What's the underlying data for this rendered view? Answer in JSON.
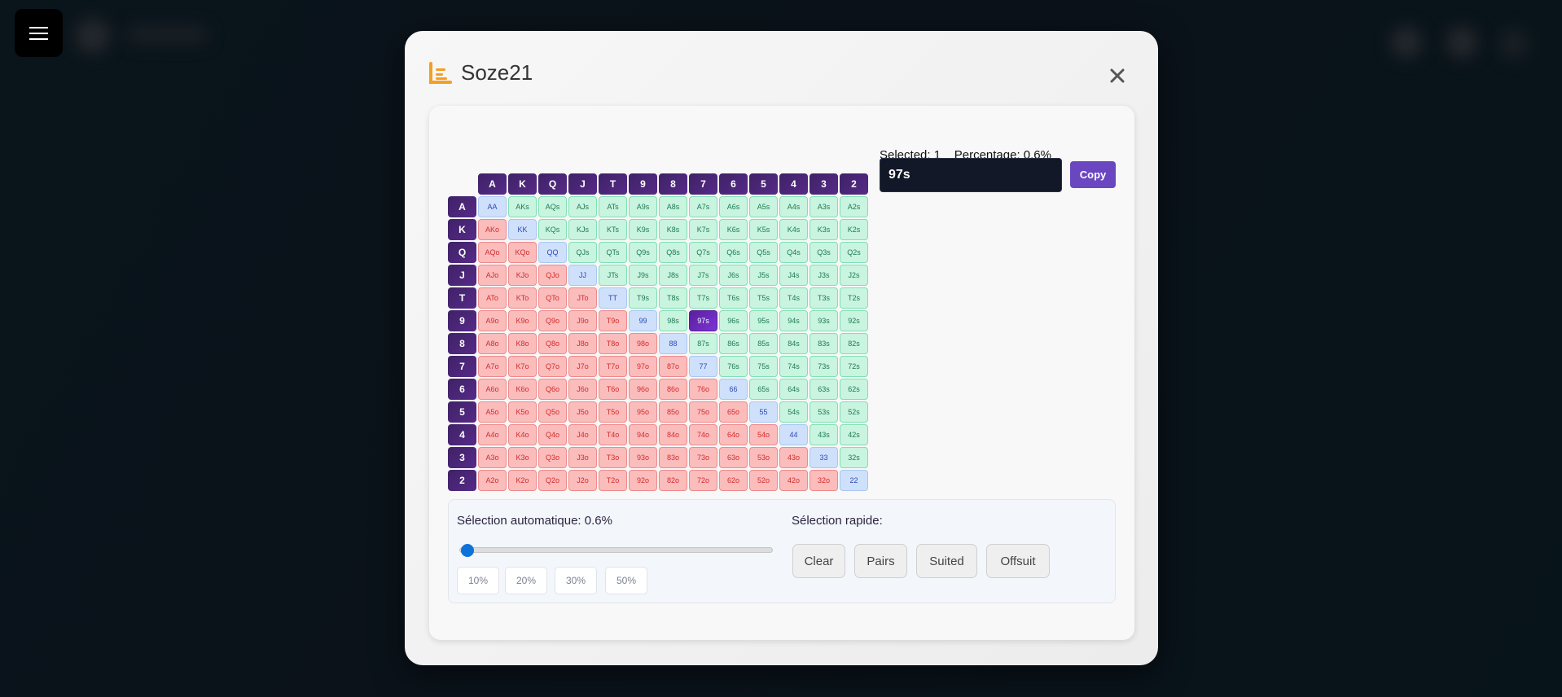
{
  "background": {
    "color": "#0a131a"
  },
  "menu": {
    "icon": "hamburger-icon"
  },
  "modal": {
    "title": "Soze21",
    "logo_icon": "bar-chart-logo-icon",
    "logo_color": "#f59e24",
    "close_icon": "close-icon"
  },
  "grid": {
    "ranks": [
      "A",
      "K",
      "Q",
      "J",
      "T",
      "9",
      "8",
      "7",
      "6",
      "5",
      "4",
      "3",
      "2"
    ],
    "selected": [
      "97s"
    ],
    "rows": [
      [
        "AA",
        "AKs",
        "AQs",
        "AJs",
        "ATs",
        "A9s",
        "A8s",
        "A7s",
        "A6s",
        "A5s",
        "A4s",
        "A3s",
        "A2s"
      ],
      [
        "AKo",
        "KK",
        "KQs",
        "KJs",
        "KTs",
        "K9s",
        "K8s",
        "K7s",
        "K6s",
        "K5s",
        "K4s",
        "K3s",
        "K2s"
      ],
      [
        "AQo",
        "KQo",
        "QQ",
        "QJs",
        "QTs",
        "Q9s",
        "Q8s",
        "Q7s",
        "Q6s",
        "Q5s",
        "Q4s",
        "Q3s",
        "Q2s"
      ],
      [
        "AJo",
        "KJo",
        "QJo",
        "JJ",
        "JTs",
        "J9s",
        "J8s",
        "J7s",
        "J6s",
        "J5s",
        "J4s",
        "J3s",
        "J2s"
      ],
      [
        "ATo",
        "KTo",
        "QTo",
        "JTo",
        "TT",
        "T9s",
        "T8s",
        "T7s",
        "T6s",
        "T5s",
        "T4s",
        "T3s",
        "T2s"
      ],
      [
        "A9o",
        "K9o",
        "Q9o",
        "J9o",
        "T9o",
        "99",
        "98s",
        "97s",
        "96s",
        "95s",
        "94s",
        "93s",
        "92s"
      ],
      [
        "A8o",
        "K8o",
        "Q8o",
        "J8o",
        "T8o",
        "98o",
        "88",
        "87s",
        "86s",
        "85s",
        "84s",
        "83s",
        "82s"
      ],
      [
        "A7o",
        "K7o",
        "Q7o",
        "J7o",
        "T7o",
        "97o",
        "87o",
        "77",
        "76s",
        "75s",
        "74s",
        "73s",
        "72s"
      ],
      [
        "A6o",
        "K6o",
        "Q6o",
        "J6o",
        "T6o",
        "96o",
        "86o",
        "76o",
        "66",
        "65s",
        "64s",
        "63s",
        "62s"
      ],
      [
        "A5o",
        "K5o",
        "Q5o",
        "J5o",
        "T5o",
        "95o",
        "85o",
        "75o",
        "65o",
        "55",
        "54s",
        "53s",
        "52s"
      ],
      [
        "A4o",
        "K4o",
        "Q4o",
        "J4o",
        "T4o",
        "94o",
        "84o",
        "74o",
        "64o",
        "54o",
        "44",
        "43s",
        "42s"
      ],
      [
        "A3o",
        "K3o",
        "Q3o",
        "J3o",
        "T3o",
        "93o",
        "83o",
        "73o",
        "63o",
        "53o",
        "43o",
        "33",
        "32s"
      ],
      [
        "A2o",
        "K2o",
        "Q2o",
        "J2o",
        "T2o",
        "92o",
        "82o",
        "72o",
        "62o",
        "52o",
        "42o",
        "32o",
        "22"
      ]
    ]
  },
  "stats": {
    "selected_text": "Selected: 1",
    "percentage_text": "Percentage: 0.6%"
  },
  "range_input": {
    "value": "97s"
  },
  "copy_label": "Copy",
  "auto": {
    "label": "Sélection automatique: 0.6%",
    "slider_percent": 0.6,
    "presets": [
      "10%",
      "20%",
      "30%",
      "50%"
    ]
  },
  "quick": {
    "label": "Sélection rapide:",
    "buttons": [
      "Clear",
      "Pairs",
      "Suited",
      "Offsuit"
    ]
  }
}
